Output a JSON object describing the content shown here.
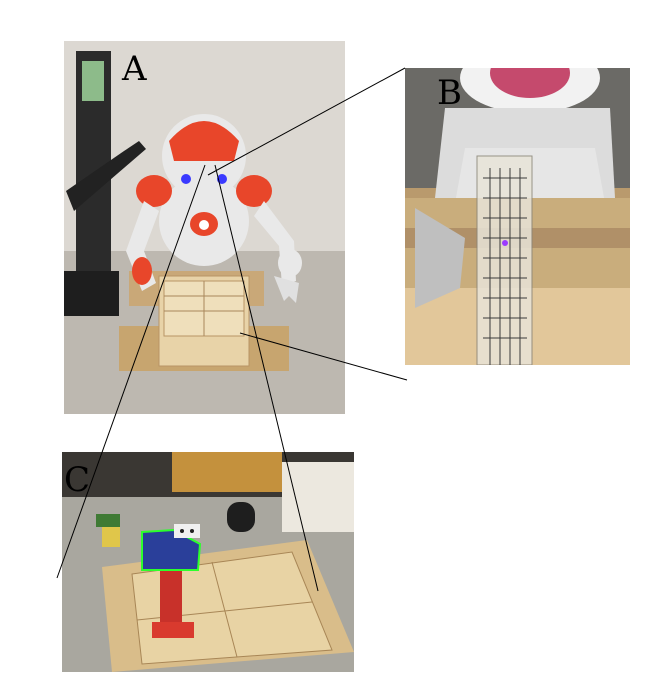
{
  "panels": [
    {
      "id": "A",
      "label": "A"
    },
    {
      "id": "B",
      "label": "B"
    },
    {
      "id": "C",
      "label": "C"
    }
  ],
  "colors": {
    "robot_orange": "#e8462a",
    "robot_white": "#e9e9e9",
    "wood": "#d8bd8c",
    "lego_red": "#d93a2e",
    "lego_blue": "#2a3f9a",
    "highlight_green": "#2cff2c",
    "connector": "#000000"
  },
  "icons": [
    "humanoid-robot",
    "wooden-board",
    "ruler",
    "lego-tower"
  ]
}
